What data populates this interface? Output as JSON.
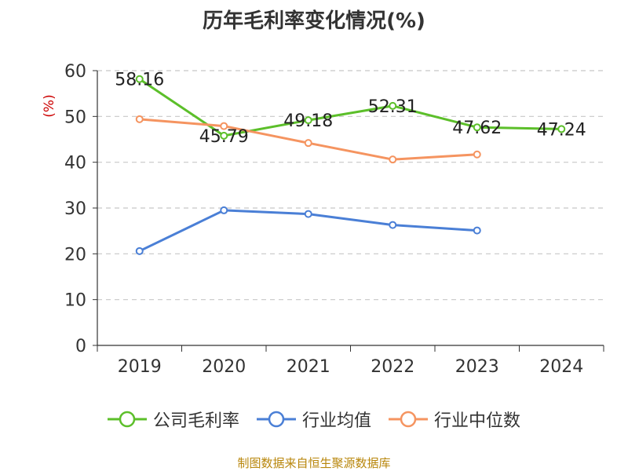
{
  "chart_data": {
    "type": "line",
    "title": "历年毛利率变化情况(%)",
    "ylabel": "(%)",
    "xlabel": "",
    "ylim": [
      0,
      60
    ],
    "yticks": [
      0,
      10,
      20,
      30,
      40,
      50,
      60
    ],
    "categories": [
      "2019",
      "2020",
      "2021",
      "2022",
      "2023",
      "2024"
    ],
    "grid": true,
    "legend_position": "bottom",
    "series": [
      {
        "name": "公司毛利率",
        "color": "#5cbf2a",
        "values": [
          58.16,
          45.79,
          49.18,
          52.31,
          47.62,
          47.24
        ],
        "data_labels": [
          "58.16",
          "45.79",
          "49.18",
          "52.31",
          "47.62",
          "47.24"
        ]
      },
      {
        "name": "行业均值",
        "color": "#4a7fd6",
        "values": [
          20.6,
          29.5,
          28.7,
          26.3,
          25.1,
          null
        ]
      },
      {
        "name": "行业中位数",
        "color": "#f59460",
        "values": [
          49.4,
          47.9,
          44.2,
          40.6,
          41.7,
          null
        ]
      }
    ]
  },
  "footer": {
    "source": "制图数据来自恒生聚源数据库"
  }
}
